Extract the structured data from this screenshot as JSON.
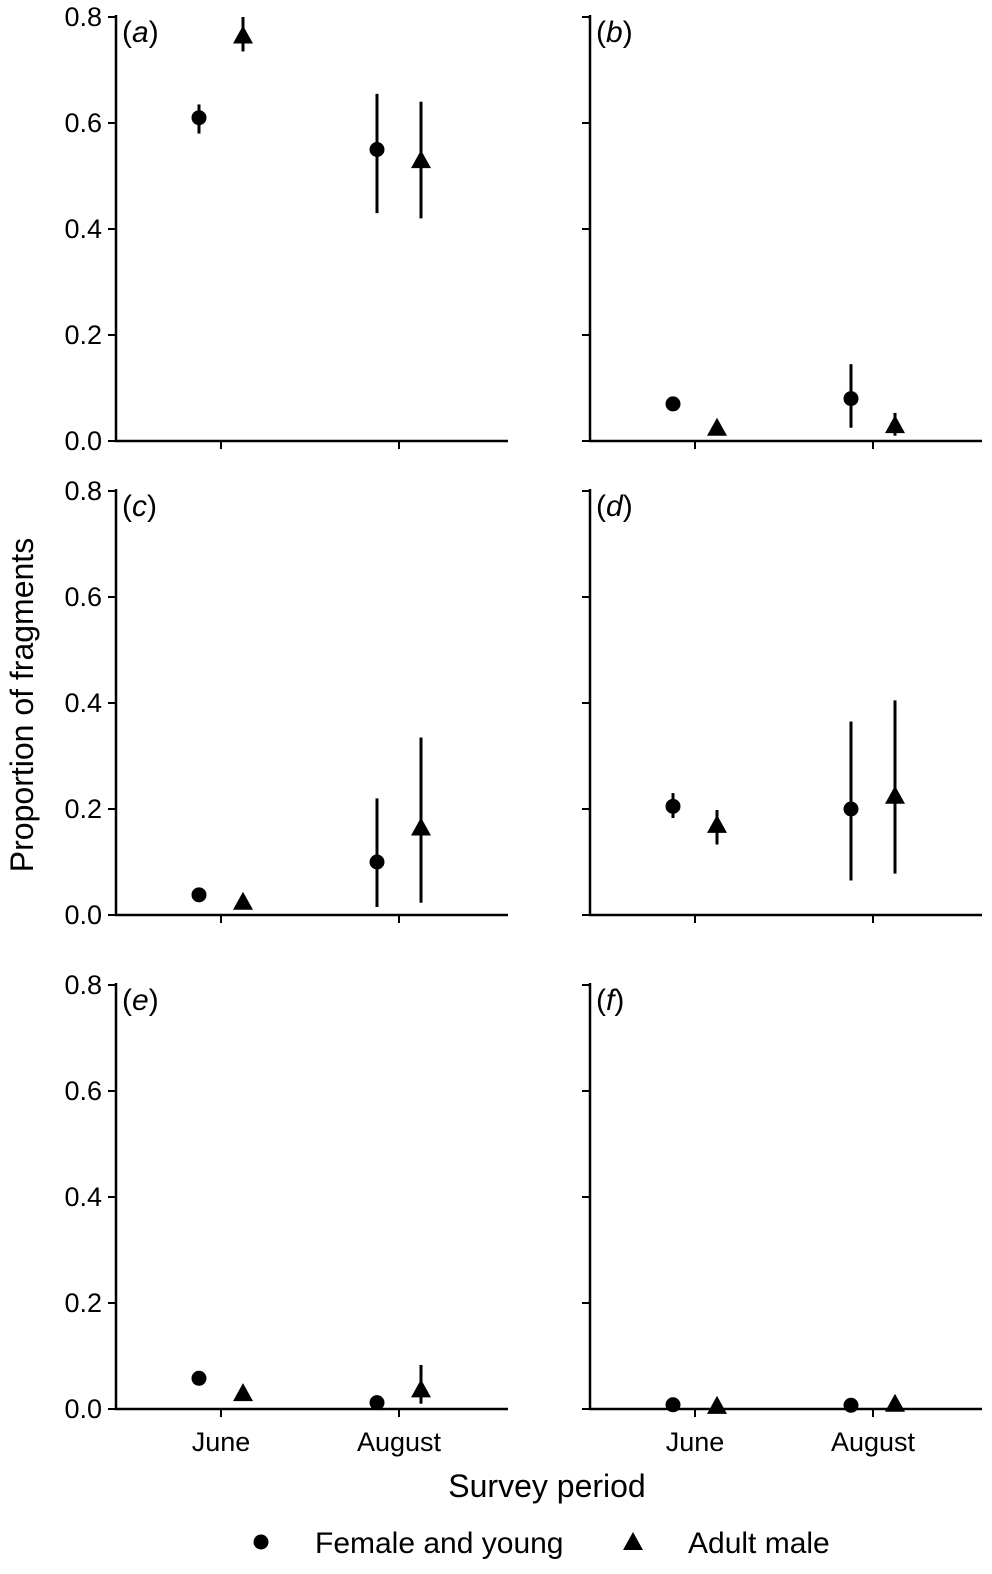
{
  "chart_data": {
    "type": "scatter",
    "layout": "3x2 small multiples",
    "xlabel": "Survey period",
    "ylabel": "Proportion of fragments",
    "categories": [
      "June",
      "August"
    ],
    "ylim": [
      0,
      0.8
    ],
    "yticks": [
      "0.0",
      "0.2",
      "0.4",
      "0.6",
      "0.8"
    ],
    "error_bars": true,
    "legend": {
      "placement": "bottom",
      "entries": [
        {
          "label": "Female and young",
          "marker": "circle"
        },
        {
          "label": "Adult male",
          "marker": "triangle"
        }
      ]
    },
    "panels": [
      {
        "label": "a",
        "series": [
          {
            "marker": "circle",
            "values": [
              0.61,
              0.55
            ],
            "lower": [
              0.58,
              0.43
            ],
            "upper": [
              0.635,
              0.655
            ]
          },
          {
            "marker": "triangle",
            "values": [
              0.765,
              0.53
            ],
            "lower": [
              0.735,
              0.42
            ],
            "upper": [
              0.8,
              0.64
            ]
          }
        ]
      },
      {
        "label": "b",
        "series": [
          {
            "marker": "circle",
            "values": [
              0.07,
              0.08
            ],
            "lower": [
              0.065,
              0.025
            ],
            "upper": [
              0.075,
              0.145
            ]
          },
          {
            "marker": "triangle",
            "values": [
              0.025,
              0.03
            ],
            "lower": [
              0.02,
              0.01
            ],
            "upper": [
              0.03,
              0.053
            ]
          }
        ]
      },
      {
        "label": "c",
        "series": [
          {
            "marker": "circle",
            "values": [
              0.038,
              0.1
            ],
            "lower": [
              0.033,
              0.015
            ],
            "upper": [
              0.043,
              0.22
            ]
          },
          {
            "marker": "triangle",
            "values": [
              0.025,
              0.165
            ],
            "lower": [
              0.02,
              0.023
            ],
            "upper": [
              0.03,
              0.335
            ]
          }
        ]
      },
      {
        "label": "d",
        "series": [
          {
            "marker": "circle",
            "values": [
              0.205,
              0.2
            ],
            "lower": [
              0.183,
              0.065
            ],
            "upper": [
              0.23,
              0.365
            ]
          },
          {
            "marker": "triangle",
            "values": [
              0.17,
              0.225
            ],
            "lower": [
              0.133,
              0.078
            ],
            "upper": [
              0.198,
              0.405
            ]
          }
        ]
      },
      {
        "label": "e",
        "series": [
          {
            "marker": "circle",
            "values": [
              0.058,
              0.012
            ],
            "lower": [
              0.053,
              0.004
            ],
            "upper": [
              0.063,
              0.02
            ]
          },
          {
            "marker": "triangle",
            "values": [
              0.03,
              0.037
            ],
            "lower": [
              0.025,
              0.01
            ],
            "upper": [
              0.035,
              0.083
            ]
          }
        ]
      },
      {
        "label": "f",
        "series": [
          {
            "marker": "circle",
            "values": [
              0.008,
              0.007
            ],
            "lower": [
              0.005,
              0.004
            ],
            "upper": [
              0.011,
              0.01
            ]
          },
          {
            "marker": "triangle",
            "values": [
              0.006,
              0.01
            ],
            "lower": [
              0.003,
              0.005
            ],
            "upper": [
              0.009,
              0.015
            ]
          }
        ]
      }
    ]
  }
}
